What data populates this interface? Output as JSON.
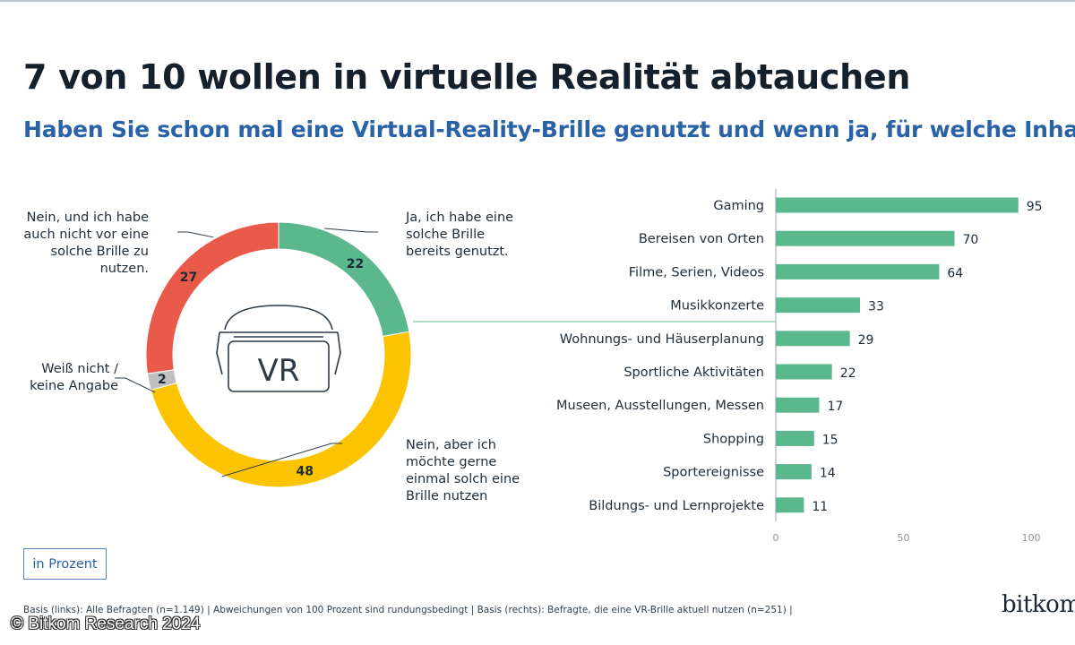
{
  "title": "7 von 10 wollen in virtuelle Realität abtauchen",
  "subtitle": "Haben Sie schon mal eine Virtual-Reality-Brille genutzt und wenn ja, für welche Inhalte?",
  "vr_icon_text": "VR",
  "donut_labels": {
    "no_no_plan": "Nein, und ich habe auch nicht vor eine solche Brille zu nutzen.",
    "yes": "Ja, ich habe eine solche Brille bereits genutzt.",
    "dont_know": "Weiß nicht / keine Angabe",
    "no_but_want": "Nein, aber ich möchte gerne einmal solch eine Brille nutzen"
  },
  "unit_label": "in Prozent",
  "footnote": "Basis (links): Alle Befragten (n=1.149) | Abweichungen von 100 Prozent sind rundungsbedingt | Basis (rechts): Befragte, die eine VR-Brille aktuell nutzen (n=251) |",
  "logo": "bitkom",
  "copyright": "© Bitkom Research 2024",
  "colors": {
    "green": "#5bb88d",
    "yellow": "#fcc400",
    "red": "#ea5a4a",
    "grey": "#bfbfbf",
    "title": "#14202c",
    "subtitle": "#2a62a8"
  },
  "chart_data": [
    {
      "type": "pie",
      "style": "donut",
      "categories": [
        "Ja, ich habe eine solche Brille bereits genutzt.",
        "Nein, aber ich möchte gerne einmal solch eine Brille nutzen",
        "Weiß nicht / keine Angabe",
        "Nein, und ich habe auch nicht vor eine solche Brille zu nutzen."
      ],
      "values": [
        22,
        48,
        2,
        27
      ],
      "colors": [
        "#5bb88d",
        "#fcc400",
        "#bfbfbf",
        "#ea5a4a"
      ],
      "unit": "in Prozent"
    },
    {
      "type": "bar",
      "orientation": "horizontal",
      "categories": [
        "Gaming",
        "Bereisen von Orten",
        "Filme, Serien, Videos",
        "Musikkonzerte",
        "Wohnungs- und Häuserplanung",
        "Sportliche Aktivitäten",
        "Museen, Ausstellungen, Messen",
        "Shopping",
        "Sportereignisse",
        "Bildungs- und Lernprojekte"
      ],
      "values": [
        95,
        70,
        64,
        33,
        29,
        22,
        17,
        15,
        14,
        11
      ],
      "xlim": [
        0,
        100
      ],
      "xticks": [
        0,
        50,
        100
      ],
      "color": "#5bb88d",
      "unit": "in Prozent"
    }
  ]
}
